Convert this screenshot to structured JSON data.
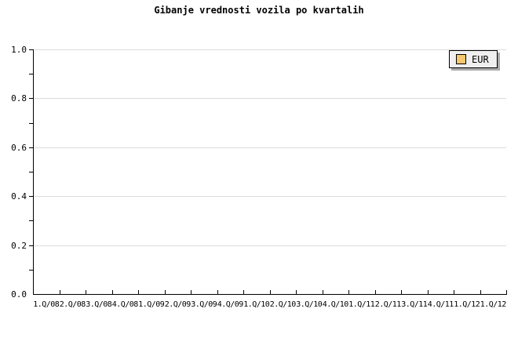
{
  "title": "Gibanje vrednosti vozila po kvartalih",
  "legend": {
    "label": "EUR",
    "swatch_color": "#f7c76f",
    "background": "#efefef",
    "shadow_color": "#ababab"
  },
  "colors": {
    "background": "#ffffff",
    "axis": "#000000",
    "gridline": "#dcdcdc",
    "text": "#000000"
  },
  "y_axis": {
    "tick_labels": [
      "0.0",
      "0.2",
      "0.4",
      "0.6",
      "0.8",
      "1.0"
    ],
    "minor_tick_step": 0.1,
    "range_min": 0,
    "range_max": 1
  },
  "x_axis": {
    "tick_labels": [
      "1.Q/08",
      "2.Q/08",
      "3.Q/08",
      "4.Q/08",
      "1.Q/09",
      "2.Q/09",
      "3.Q/09",
      "4.Q/09",
      "1.Q/10",
      "2.Q/10",
      "3.Q/10",
      "4.Q/10",
      "1.Q/11",
      "2.Q/11",
      "3.Q/11",
      "4.Q/11",
      "1.Q/12",
      "1.Q/12"
    ]
  },
  "chart_data": {
    "type": "line",
    "title": "Gibanje vrednosti vozila po kvartalih",
    "categories": [
      "1.Q/08",
      "2.Q/08",
      "3.Q/08",
      "4.Q/08",
      "1.Q/09",
      "2.Q/09",
      "3.Q/09",
      "4.Q/09",
      "1.Q/10",
      "2.Q/10",
      "3.Q/10",
      "4.Q/10",
      "1.Q/11",
      "2.Q/11",
      "3.Q/11",
      "4.Q/11",
      "1.Q/12",
      "1.Q/12"
    ],
    "series": [
      {
        "name": "EUR",
        "color": "#f7c76f",
        "values": []
      }
    ],
    "xlabel": "",
    "ylabel": "",
    "ylim": [
      0,
      1
    ],
    "y_ticks": [
      0,
      0.2,
      0.4,
      0.6,
      0.8,
      1.0
    ],
    "minor_y_tick_step": 0.1,
    "grid": true,
    "legend_position": "top-right",
    "plotted_points": "none (empty plot area, no data drawn)"
  }
}
